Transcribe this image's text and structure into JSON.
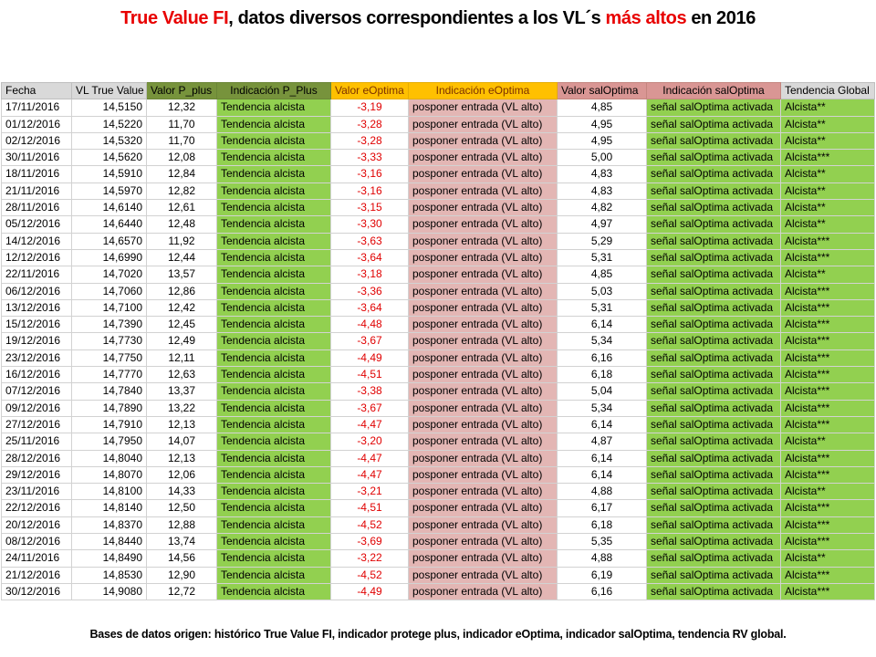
{
  "title": {
    "segments": [
      {
        "text": "True Value FI",
        "color": "red"
      },
      {
        "text": ", datos diversos correspondientes a los VL´s ",
        "color": "black"
      },
      {
        "text": "más altos",
        "color": "red"
      },
      {
        "text": " en 2016",
        "color": "black"
      }
    ]
  },
  "table": {
    "columns": [
      {
        "label": "Fecha"
      },
      {
        "label": "VL True Value"
      },
      {
        "label": "Valor P_plus"
      },
      {
        "label": "Indicación P_Plus"
      },
      {
        "label": "Valor eOptima"
      },
      {
        "label": "Indicación eOptima"
      },
      {
        "label": "Valor salOptima"
      },
      {
        "label": "Indicación salOptima"
      },
      {
        "label": "Tendencia Global"
      }
    ],
    "rows": [
      [
        "17/11/2016",
        "14,5150",
        "12,32",
        "Tendencia alcista",
        "-3,19",
        "posponer entrada (VL alto)",
        "4,85",
        "señal salOptima activada",
        "Alcista**"
      ],
      [
        "01/12/2016",
        "14,5220",
        "11,70",
        "Tendencia alcista",
        "-3,28",
        "posponer entrada (VL alto)",
        "4,95",
        "señal salOptima activada",
        "Alcista**"
      ],
      [
        "02/12/2016",
        "14,5320",
        "11,70",
        "Tendencia alcista",
        "-3,28",
        "posponer entrada (VL alto)",
        "4,95",
        "señal salOptima activada",
        "Alcista**"
      ],
      [
        "30/11/2016",
        "14,5620",
        "12,08",
        "Tendencia alcista",
        "-3,33",
        "posponer entrada (VL alto)",
        "5,00",
        "señal salOptima activada",
        "Alcista***"
      ],
      [
        "18/11/2016",
        "14,5910",
        "12,84",
        "Tendencia alcista",
        "-3,16",
        "posponer entrada (VL alto)",
        "4,83",
        "señal salOptima activada",
        "Alcista**"
      ],
      [
        "21/11/2016",
        "14,5970",
        "12,82",
        "Tendencia alcista",
        "-3,16",
        "posponer entrada (VL alto)",
        "4,83",
        "señal salOptima activada",
        "Alcista**"
      ],
      [
        "28/11/2016",
        "14,6140",
        "12,61",
        "Tendencia alcista",
        "-3,15",
        "posponer entrada (VL alto)",
        "4,82",
        "señal salOptima activada",
        "Alcista**"
      ],
      [
        "05/12/2016",
        "14,6440",
        "12,48",
        "Tendencia alcista",
        "-3,30",
        "posponer entrada (VL alto)",
        "4,97",
        "señal salOptima activada",
        "Alcista**"
      ],
      [
        "14/12/2016",
        "14,6570",
        "11,92",
        "Tendencia alcista",
        "-3,63",
        "posponer entrada (VL alto)",
        "5,29",
        "señal salOptima activada",
        "Alcista***"
      ],
      [
        "12/12/2016",
        "14,6990",
        "12,44",
        "Tendencia alcista",
        "-3,64",
        "posponer entrada (VL alto)",
        "5,31",
        "señal salOptima activada",
        "Alcista***"
      ],
      [
        "22/11/2016",
        "14,7020",
        "13,57",
        "Tendencia alcista",
        "-3,18",
        "posponer entrada (VL alto)",
        "4,85",
        "señal salOptima activada",
        "Alcista**"
      ],
      [
        "06/12/2016",
        "14,7060",
        "12,86",
        "Tendencia alcista",
        "-3,36",
        "posponer entrada (VL alto)",
        "5,03",
        "señal salOptima activada",
        "Alcista***"
      ],
      [
        "13/12/2016",
        "14,7100",
        "12,42",
        "Tendencia alcista",
        "-3,64",
        "posponer entrada (VL alto)",
        "5,31",
        "señal salOptima activada",
        "Alcista***"
      ],
      [
        "15/12/2016",
        "14,7390",
        "12,45",
        "Tendencia alcista",
        "-4,48",
        "posponer entrada (VL alto)",
        "6,14",
        "señal salOptima activada",
        "Alcista***"
      ],
      [
        "19/12/2016",
        "14,7730",
        "12,49",
        "Tendencia alcista",
        "-3,67",
        "posponer entrada (VL alto)",
        "5,34",
        "señal salOptima activada",
        "Alcista***"
      ],
      [
        "23/12/2016",
        "14,7750",
        "12,11",
        "Tendencia alcista",
        "-4,49",
        "posponer entrada (VL alto)",
        "6,16",
        "señal salOptima activada",
        "Alcista***"
      ],
      [
        "16/12/2016",
        "14,7770",
        "12,63",
        "Tendencia alcista",
        "-4,51",
        "posponer entrada (VL alto)",
        "6,18",
        "señal salOptima activada",
        "Alcista***"
      ],
      [
        "07/12/2016",
        "14,7840",
        "13,37",
        "Tendencia alcista",
        "-3,38",
        "posponer entrada (VL alto)",
        "5,04",
        "señal salOptima activada",
        "Alcista***"
      ],
      [
        "09/12/2016",
        "14,7890",
        "13,22",
        "Tendencia alcista",
        "-3,67",
        "posponer entrada (VL alto)",
        "5,34",
        "señal salOptima activada",
        "Alcista***"
      ],
      [
        "27/12/2016",
        "14,7910",
        "12,13",
        "Tendencia alcista",
        "-4,47",
        "posponer entrada (VL alto)",
        "6,14",
        "señal salOptima activada",
        "Alcista***"
      ],
      [
        "25/11/2016",
        "14,7950",
        "14,07",
        "Tendencia alcista",
        "-3,20",
        "posponer entrada (VL alto)",
        "4,87",
        "señal salOptima activada",
        "Alcista**"
      ],
      [
        "28/12/2016",
        "14,8040",
        "12,13",
        "Tendencia alcista",
        "-4,47",
        "posponer entrada (VL alto)",
        "6,14",
        "señal salOptima activada",
        "Alcista***"
      ],
      [
        "29/12/2016",
        "14,8070",
        "12,06",
        "Tendencia alcista",
        "-4,47",
        "posponer entrada (VL alto)",
        "6,14",
        "señal salOptima activada",
        "Alcista***"
      ],
      [
        "23/11/2016",
        "14,8100",
        "14,33",
        "Tendencia alcista",
        "-3,21",
        "posponer entrada (VL alto)",
        "4,88",
        "señal salOptima activada",
        "Alcista**"
      ],
      [
        "22/12/2016",
        "14,8140",
        "12,50",
        "Tendencia alcista",
        "-4,51",
        "posponer entrada (VL alto)",
        "6,17",
        "señal salOptima activada",
        "Alcista***"
      ],
      [
        "20/12/2016",
        "14,8370",
        "12,88",
        "Tendencia alcista",
        "-4,52",
        "posponer entrada (VL alto)",
        "6,18",
        "señal salOptima activada",
        "Alcista***"
      ],
      [
        "08/12/2016",
        "14,8440",
        "13,74",
        "Tendencia alcista",
        "-3,69",
        "posponer entrada (VL alto)",
        "5,35",
        "señal salOptima activada",
        "Alcista***"
      ],
      [
        "24/11/2016",
        "14,8490",
        "14,56",
        "Tendencia alcista",
        "-3,22",
        "posponer entrada (VL alto)",
        "4,88",
        "señal salOptima activada",
        "Alcista**"
      ],
      [
        "21/12/2016",
        "14,8530",
        "12,90",
        "Tendencia alcista",
        "-4,52",
        "posponer entrada (VL alto)",
        "6,19",
        "señal salOptima activada",
        "Alcista***"
      ],
      [
        "30/12/2016",
        "14,9080",
        "12,72",
        "Tendencia alcista",
        "-4,49",
        "posponer entrada (VL alto)",
        "6,16",
        "señal salOptima activada",
        "Alcista***"
      ]
    ]
  },
  "footer": {
    "text": "Bases de datos origen: histórico True Value FI, indicador protege plus, indicador eOptima, indicador salOptima, tendencia RV global."
  },
  "colors": {
    "title_red": "#e80000",
    "header_gray": "#d9d9d9",
    "header_olive": "#77933c",
    "header_gold": "#ffc000",
    "header_gold_text": "#7b3000",
    "header_rose": "#d99694",
    "cell_green": "#92d050",
    "cell_pink": "#e3b6b4",
    "value_red": "#e00000",
    "grid_line": "#d2d2d2",
    "separator_black": "#000000"
  }
}
